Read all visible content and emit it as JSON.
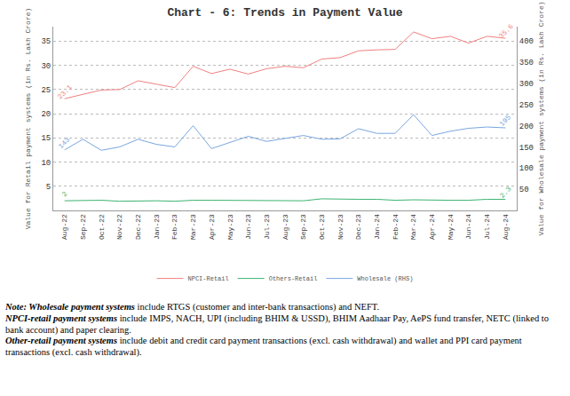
{
  "chart_data": {
    "type": "line",
    "title": "Chart - 6: Trends in Payment Value",
    "y_label": "Value for Retail payment systems (in Rs. Lakh Crore)",
    "y2_label": "Value for Wholesale payment systems (in Rs. Lakh Crore)",
    "categories": [
      "Aug-22",
      "Sep-22",
      "Oct-22",
      "Nov-22",
      "Dec-22",
      "Jan-23",
      "Feb-23",
      "Mar-23",
      "Apr-23",
      "May-23",
      "Jun-23",
      "Jul-23",
      "Aug-23",
      "Sep-23",
      "Oct-23",
      "Nov-23",
      "Dec-23",
      "Jan-24",
      "Feb-24",
      "Mar-24",
      "Apr-24",
      "May-24",
      "Jun-24",
      "Jul-24",
      "Aug-24"
    ],
    "series": [
      {
        "name": "NPCI-Retail",
        "color": "#f08080",
        "axis": "y",
        "values": [
          23.1,
          24.0,
          24.9,
          25.0,
          26.8,
          26.1,
          25.4,
          29.8,
          28.3,
          29.2,
          28.2,
          29.3,
          29.8,
          29.5,
          31.3,
          31.6,
          33.0,
          33.2,
          33.3,
          36.9,
          35.5,
          36.0,
          34.6,
          36.0,
          35.6
        ]
      },
      {
        "name": "Others-Retail",
        "color": "#3cb371",
        "axis": "y",
        "values": [
          2,
          2.0,
          2.1,
          1.9,
          2.0,
          2.0,
          1.9,
          2.1,
          2.1,
          2.1,
          2.0,
          2.1,
          2.1,
          2.0,
          2.4,
          2.3,
          2.3,
          2.3,
          2.1,
          2.2,
          2.1,
          2.1,
          2.1,
          2.3,
          2.3
        ]
      },
      {
        "name": "Wholesale (RHS)",
        "color": "#7aa6e0",
        "axis": "y2",
        "values": [
          143,
          168,
          142,
          150,
          168,
          156,
          150,
          200,
          146,
          160,
          175,
          163,
          170,
          177,
          168,
          169,
          193,
          182,
          182,
          226,
          177,
          187,
          194,
          197,
          195
        ]
      }
    ],
    "annotations": [
      {
        "series": "NPCI-Retail",
        "x": "Aug-22",
        "y": 23.1,
        "text": "23.1"
      },
      {
        "series": "NPCI-Retail",
        "x": "Aug-24",
        "y": 35.6,
        "text": "35.6"
      },
      {
        "series": "Others-Retail",
        "x": "Aug-22",
        "y": 2,
        "text": "2"
      },
      {
        "series": "Others-Retail",
        "x": "Aug-24",
        "y": 2.3,
        "text": "2.3"
      },
      {
        "series": "Wholesale (RHS)",
        "x": "Aug-22",
        "y": 143,
        "text": "143"
      },
      {
        "series": "Wholesale (RHS)",
        "x": "Aug-24",
        "y": 195,
        "text": "195"
      }
    ],
    "ylim": [
      0,
      38
    ],
    "yticks": [
      5,
      10,
      15,
      20,
      25,
      30,
      35
    ],
    "y2lim": [
      0,
      434
    ],
    "y2ticks": [
      50,
      100,
      150,
      200,
      250,
      300,
      350,
      400
    ],
    "grid": true,
    "legend": "bottom",
    "notes": [
      {
        "bold": "Note: Wholesale payment systems",
        "text": " include RTGS (customer and inter-bank transactions) and NEFT."
      },
      {
        "bold": "NPCI-retail payment systems",
        "text": " include IMPS, NACH, UPI (including BHIM & USSD), BHIM Aadhaar Pay, AePS fund transfer, NETC (linked to bank account) and paper clearing."
      },
      {
        "bold": "Other-retail payment systems",
        "text": " include debit and credit card payment transactions (excl. cash withdrawal) and wallet and PPI card payment transactions (excl. cash withdrawal)."
      }
    ]
  }
}
